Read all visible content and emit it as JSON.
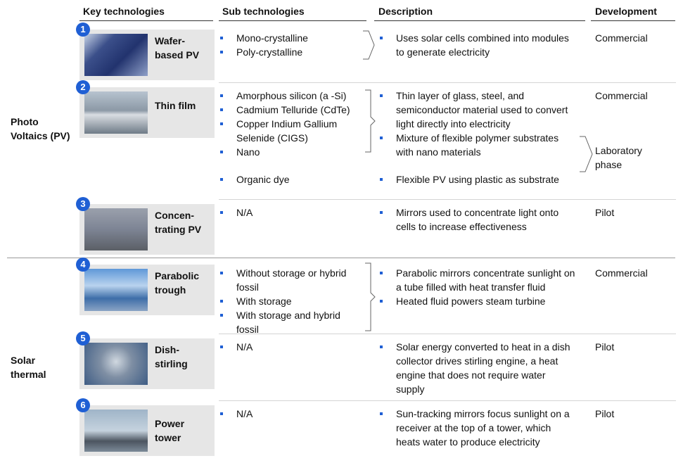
{
  "header": {
    "key": "Key technologies",
    "sub": "Sub technologies",
    "description": "Description",
    "development": "Development"
  },
  "groups": [
    {
      "label": "Photo Voltaics (PV)",
      "rows": [
        {
          "number": "1",
          "name": "Wafer-based PV",
          "subs": [
            "Mono-crystalline",
            "Poly-crystalline"
          ],
          "descriptions": [
            "Uses solar cells combined into modules to generate electricity"
          ],
          "development": [
            "Commercial"
          ]
        },
        {
          "number": "2",
          "name": "Thin film",
          "subs": [
            "Amorphous silicon (a -Si)",
            "Cadmium Telluride (CdTe)",
            "Copper Indium Gallium Selenide (CIGS)",
            "Nano",
            "Organic dye"
          ],
          "descriptions": [
            "Thin layer of glass, steel, and semiconductor material used to convert light directly into electricity",
            "Mixture of flexible polymer substrates with nano materials",
            "Flexible PV using plastic as substrate"
          ],
          "development": [
            "Commercial",
            "Laboratory phase"
          ]
        },
        {
          "number": "3",
          "name": "Concen-trating PV",
          "subs": [
            "N/A"
          ],
          "descriptions": [
            "Mirrors used to concentrate light onto cells to increase effectiveness"
          ],
          "development": [
            "Pilot"
          ]
        }
      ]
    },
    {
      "label": "Solar thermal",
      "rows": [
        {
          "number": "4",
          "name": "Parabolic trough",
          "subs": [
            "Without storage or hybrid fossil",
            "With storage",
            "With storage and hybrid fossil"
          ],
          "descriptions": [
            "Parabolic mirrors concentrate sunlight on a tube filled with heat transfer fluid",
            "Heated fluid powers steam turbine"
          ],
          "development": [
            "Commercial"
          ]
        },
        {
          "number": "5",
          "name": "Dish-stirling",
          "subs": [
            "N/A"
          ],
          "descriptions": [
            "Solar energy converted to heat in a dish collector drives stirling engine, a heat engine that does not require water supply"
          ],
          "development": [
            "Pilot"
          ]
        },
        {
          "number": "6",
          "name": "Power tower",
          "subs": [
            "N/A"
          ],
          "descriptions": [
            "Sun-tracking mirrors focus sunlight on a receiver at the top of a tower, which heats water to produce electricity"
          ],
          "development": [
            "Pilot"
          ]
        }
      ]
    }
  ]
}
